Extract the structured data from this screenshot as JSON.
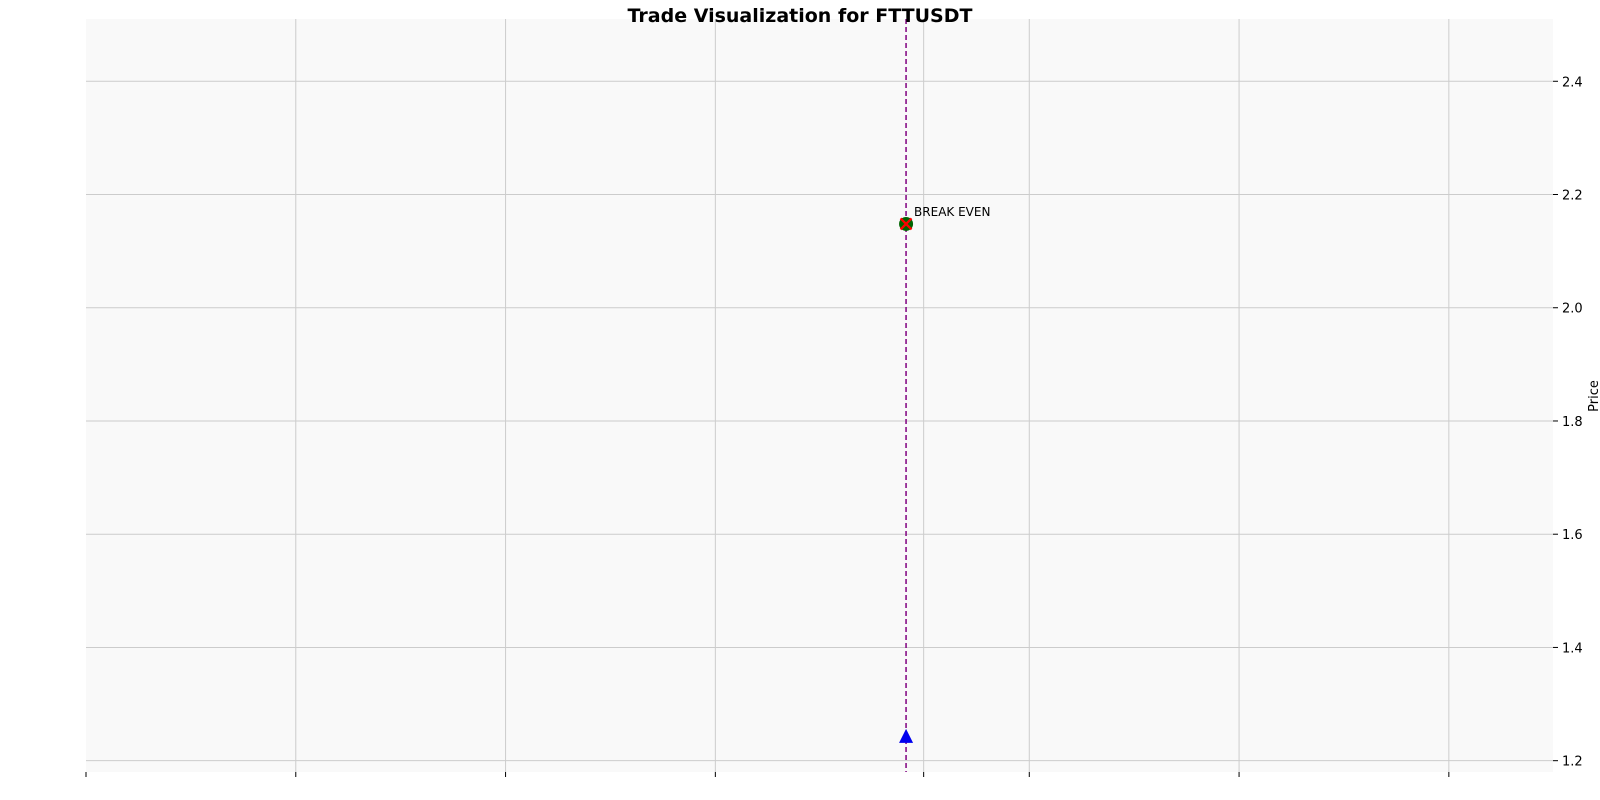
{
  "chart_data": {
    "type": "scatter",
    "title": "Trade Visualization for FTTUSDT",
    "xlabel": "",
    "ylabel": "Price",
    "y_axis_side": "right",
    "ylim": [
      1.18,
      2.51
    ],
    "yticks": [
      1.2,
      1.4,
      1.6,
      1.8,
      2.0,
      2.2,
      2.4
    ],
    "ytick_labels": [
      "1.2",
      "1.4",
      "1.6",
      "1.8",
      "2.0",
      "2.2",
      "2.4"
    ],
    "xlim": [
      0,
      1
    ],
    "xticks": [
      0.0,
      0.143,
      0.286,
      0.429,
      0.571,
      0.643,
      0.786,
      0.929
    ],
    "xtick_labels": [
      "",
      "",
      "",
      "",
      "",
      "",
      "",
      ""
    ],
    "grid": true,
    "trade_time_x": 0.559,
    "series": [
      {
        "marker": "triangle-up",
        "color": "#0000ee",
        "points": [
          {
            "x": 0.559,
            "y": 1.242
          }
        ]
      },
      {
        "marker": "circle",
        "color": "#006400",
        "points": [
          {
            "x": 0.559,
            "y": 2.148
          }
        ]
      },
      {
        "marker": "x",
        "color": "#ff0000",
        "points": [
          {
            "x": 0.559,
            "y": 2.148
          }
        ]
      }
    ],
    "vertical_lines": [
      {
        "x": 0.559,
        "color": "#800080",
        "style": "dashed"
      }
    ],
    "annotations": [
      {
        "text": "BREAK EVEN",
        "x": 0.559,
        "y": 2.148
      }
    ]
  }
}
